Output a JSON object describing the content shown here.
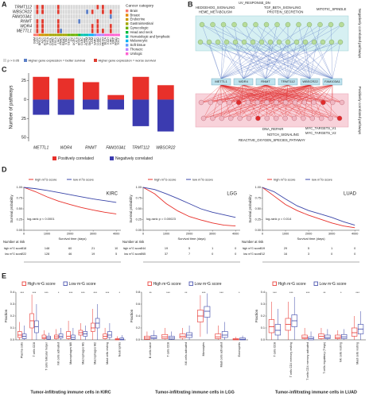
{
  "heatmap": {
    "panel_label": "A",
    "rows": [
      "TRMT112",
      "WBSCR22",
      "FAM103A1",
      "RNMT",
      "WDR4",
      "METTL1"
    ],
    "columns": [
      "GBM",
      "LGG",
      "BRCA",
      "ACC",
      "PCPG",
      "THCA",
      "CHOL",
      "COAD",
      "ESCA",
      "LIHC",
      "PAAD",
      "READ",
      "STAD",
      "CESC",
      "OV",
      "UCEC",
      "UCS",
      "HNSC",
      "DLBC",
      "LAML",
      "THYM",
      "SKCM",
      "UVM",
      "SARC",
      "LUAD",
      "LUSC",
      "MESO",
      "BLCA",
      "KICH",
      "KIRC",
      "KIRP",
      "PRAD",
      "TGCT"
    ],
    "column_category": [
      0,
      0,
      1,
      2,
      2,
      2,
      3,
      3,
      3,
      3,
      3,
      3,
      3,
      4,
      4,
      4,
      4,
      5,
      6,
      6,
      6,
      7,
      7,
      8,
      9,
      9,
      9,
      10,
      10,
      10,
      10,
      10,
      10
    ],
    "cells": [
      [
        0,
        2,
        0,
        2,
        0,
        0,
        0,
        0,
        0,
        2,
        0,
        0,
        0,
        0,
        0,
        0,
        0,
        0,
        0,
        0,
        0,
        0,
        0,
        0,
        2,
        0,
        2,
        0,
        0,
        0,
        0,
        0,
        0
      ],
      [
        0,
        2,
        0,
        2,
        0,
        0,
        0,
        0,
        0,
        2,
        0,
        0,
        0,
        0,
        0,
        0,
        0,
        0,
        0,
        0,
        1,
        0,
        2,
        0,
        0,
        0,
        2,
        0,
        0,
        2,
        0,
        0,
        0
      ],
      [
        0,
        0,
        0,
        0,
        0,
        0,
        0,
        0,
        0,
        0,
        0,
        0,
        0,
        0,
        0,
        0,
        0,
        0,
        0,
        0,
        0,
        0,
        0,
        0,
        0,
        0,
        0,
        0,
        0,
        1,
        0,
        0,
        0
      ],
      [
        0,
        2,
        0,
        2,
        0,
        0,
        0,
        0,
        0,
        2,
        0,
        0,
        0,
        0,
        0,
        0,
        0,
        1,
        0,
        0,
        0,
        0,
        0,
        0,
        2,
        0,
        0,
        0,
        0,
        0,
        0,
        0,
        0
      ],
      [
        0,
        2,
        0,
        2,
        0,
        0,
        0,
        0,
        0,
        2,
        0,
        0,
        0,
        0,
        0,
        0,
        0,
        0,
        0,
        0,
        0,
        0,
        2,
        0,
        2,
        0,
        0,
        0,
        0,
        2,
        0,
        0,
        0
      ],
      [
        0,
        2,
        0,
        2,
        0,
        0,
        0,
        0,
        0,
        2,
        1,
        0,
        0,
        0,
        0,
        0,
        0,
        0,
        0,
        0,
        0,
        0,
        2,
        0,
        2,
        0,
        2,
        0,
        0,
        2,
        0,
        0,
        0
      ]
    ],
    "category_title": "Cancer category",
    "categories": [
      {
        "name": "Brain",
        "color": "#f8766d"
      },
      {
        "name": "Breast",
        "color": "#e58700"
      },
      {
        "name": "Endocrine",
        "color": "#c99800"
      },
      {
        "name": "Gastrointestinal",
        "color": "#a3a500"
      },
      {
        "name": "Gynecologic",
        "color": "#6bb100"
      },
      {
        "name": "Head and neck",
        "color": "#00ba38"
      },
      {
        "name": "Hematologic and lymphatic",
        "color": "#00c0af"
      },
      {
        "name": "Melanocytic",
        "color": "#00b0f6"
      },
      {
        "name": "Soft tissue",
        "color": "#619cff"
      },
      {
        "name": "Thoracic",
        "color": "#b983ff"
      },
      {
        "name": "Urologic",
        "color": "#fd61d1"
      }
    ],
    "legend": [
      {
        "label": "p > 0.05",
        "color": "#d9d9d9"
      },
      {
        "label": "Higher gene expression = better survival",
        "color": "#5b7fc7"
      },
      {
        "label": "Higher gene expression = worse survival",
        "color": "#e03b2f"
      }
    ]
  },
  "network": {
    "panel_label": "B",
    "top_pathways": [
      "UV_RESPONSE_DN",
      "HEDGEHOG_SIGNALING",
      "TGF_BETA_SIGNALING",
      "HEME_METABOLISM",
      "PROTEIN_SECRETION",
      "MITOTIC_SPINDLE"
    ],
    "genes": [
      "METTL1",
      "WDR4",
      "RNMT",
      "TRMT112",
      "WBSCR22",
      "FAM103A1"
    ],
    "bottom_pathways": [
      "DNA_REPAIR",
      "MYC_TARGETS_V1",
      "MYC_TARGETS_V2",
      "NOTCH_SIGNALING",
      "REACTIVE_OXYGEN_SPECIES_PATHWAY"
    ],
    "top_group": "Negatively correlated pathways",
    "bottom_group": "Positively correlated pathways"
  },
  "chart_data": [
    {
      "type": "diverging-bar",
      "panel_label": "C",
      "y_label": "Number of pathways",
      "categories": [
        "METTL1",
        "WDR4",
        "RNMT",
        "FAM103A1",
        "TRMT112",
        "WBSCR22"
      ],
      "series": [
        {
          "name": "Positively correlated",
          "color": "#e8302a",
          "values": [
            30,
            28,
            23,
            6,
            30,
            19
          ]
        },
        {
          "name": "Negatively correlated",
          "color": "#3b3bb0",
          "values": [
            -20,
            -20,
            -13,
            -13,
            -35,
            -42
          ]
        }
      ],
      "ylim": [
        -55,
        35
      ],
      "yticks": [
        {
          "value": -50,
          "label": "50"
        },
        {
          "value": -25,
          "label": "25"
        },
        0,
        25
      ]
    },
    {
      "type": "survival",
      "panel_label": "D",
      "title": "KIRC",
      "annotation": "log-rank p < 0.0001",
      "x_label": "Survival time (days)",
      "y_label": "Survival probability",
      "series": [
        {
          "name": "high m⁷G score",
          "color": "#e8302a",
          "x": [
            0,
            500,
            1000,
            1500,
            2000,
            2500,
            3000,
            3500,
            4000
          ],
          "values": [
            1,
            0.9,
            0.78,
            0.68,
            0.6,
            0.53,
            0.47,
            0.42,
            0.38
          ]
        },
        {
          "name": "low m⁷G score",
          "color": "#3a45a8",
          "x": [
            0,
            500,
            1000,
            1500,
            2000,
            2500,
            3000,
            3500,
            4000
          ],
          "values": [
            1,
            0.97,
            0.93,
            0.88,
            0.83,
            0.78,
            0.73,
            0.69,
            0.65
          ]
        }
      ],
      "xlim": [
        0,
        4200
      ],
      "xticks": [
        0,
        1000,
        2000,
        3000,
        4000
      ],
      "ylim": [
        0,
        1
      ],
      "yticks": [
        {
          "value": 0,
          "label": "0.00"
        },
        0.25,
        {
          "value": 0.5,
          "label": "0.50"
        },
        0.75,
        {
          "value": 1,
          "label": "1.00"
        }
      ],
      "risk_title": "Number at risk",
      "risk": [
        [
          318,
          148,
          60,
          21,
          10
        ],
        [
          222,
          128,
          46,
          19,
          5
        ]
      ]
    },
    {
      "type": "survival",
      "title": "LGG",
      "annotation": "log-rank p = 0.00023",
      "x_label": "Survival time (days)",
      "y_label": "Survival probability",
      "series": [
        {
          "name": "high m⁷G score",
          "color": "#e8302a",
          "x": [
            0,
            500,
            1000,
            1500,
            2000,
            2500,
            3000,
            3500,
            4000
          ],
          "values": [
            1,
            0.85,
            0.62,
            0.45,
            0.32,
            0.24,
            0.17,
            0.12,
            0.1
          ]
        },
        {
          "name": "low m⁷G score",
          "color": "#3a45a8",
          "x": [
            0,
            500,
            1000,
            1500,
            2000,
            2500,
            3000,
            3500,
            4000
          ],
          "values": [
            1,
            0.95,
            0.85,
            0.74,
            0.62,
            0.5,
            0.42,
            0.36,
            0.3
          ]
        }
      ],
      "xlim": [
        0,
        4200
      ],
      "xticks": [
        0,
        1000,
        2000,
        3000,
        4000
      ],
      "ylim": [
        0,
        1
      ],
      "yticks": [
        {
          "value": 0,
          "label": "0.00"
        },
        0.25,
        {
          "value": 0.5,
          "label": "0.50"
        },
        0.75,
        {
          "value": 1,
          "label": "1.00"
        }
      ],
      "risk_title": "Number at risk",
      "risk": [
        [
          244,
          19,
          5,
          1,
          0
        ],
        [
          265,
          37,
          7,
          0,
          0
        ]
      ]
    },
    {
      "type": "survival",
      "title": "LUAD",
      "annotation": "log-rank p = 0.014",
      "x_label": "Survival time (days)",
      "y_label": "Survival probability",
      "series": [
        {
          "name": "high m⁷G score",
          "color": "#e8302a",
          "x": [
            0,
            500,
            1000,
            1500,
            2000,
            2500,
            3000,
            3500,
            4000
          ],
          "values": [
            1,
            0.8,
            0.6,
            0.46,
            0.35,
            0.26,
            0.17,
            0.1,
            0.06
          ]
        },
        {
          "name": "low m⁷G score",
          "color": "#3a45a8",
          "x": [
            0,
            500,
            1000,
            1500,
            2000,
            2500,
            3000,
            3500,
            4000
          ],
          "values": [
            1,
            0.9,
            0.73,
            0.57,
            0.46,
            0.38,
            0.3,
            0.2,
            0.12
          ]
        }
      ],
      "xlim": [
        0,
        4200
      ],
      "xticks": [
        0,
        1000,
        2000,
        3000,
        4000
      ],
      "ylim": [
        0,
        1
      ],
      "yticks": [
        {
          "value": 0,
          "label": "0.00"
        },
        0.25,
        {
          "value": 0.5,
          "label": "0.50"
        },
        0.75,
        {
          "value": 1,
          "label": "1.00"
        }
      ],
      "risk_title": "Number at risk",
      "risk": [
        [
          319,
          29,
          5,
          1,
          0
        ],
        [
          212,
          16,
          3,
          0,
          0
        ]
      ]
    },
    {
      "type": "box",
      "panel_label": "E",
      "title": "Tumor-infiltrating immune cells in KIRC",
      "y_label": "Fraction",
      "categories": [
        "Plasma cells",
        "T cells CD8",
        "T cells follicular helper",
        "NK cells activated",
        "Macrophages M0",
        "Macrophages M1",
        "Macrophages M2",
        "Mast cells resting",
        "Neutrophils"
      ],
      "series": [
        {
          "name": "High m⁷G score",
          "color": "#e8302a",
          "boxes": [
            [
              0,
              0.02,
              0.04,
              0.07,
              0.15
            ],
            [
              0,
              0.1,
              0.16,
              0.22,
              0.38
            ],
            [
              0,
              0.01,
              0.02,
              0.04,
              0.08
            ],
            [
              0,
              0.01,
              0.025,
              0.04,
              0.09
            ],
            [
              0,
              0.01,
              0.03,
              0.07,
              0.16
            ],
            [
              0,
              0.04,
              0.06,
              0.08,
              0.14
            ],
            [
              0,
              0.07,
              0.1,
              0.14,
              0.26
            ],
            [
              0,
              0.01,
              0.03,
              0.05,
              0.1
            ],
            [
              0,
              0,
              0.005,
              0.01,
              0.03
            ]
          ]
        },
        {
          "name": "Low m⁷G score",
          "color": "#3a45a8",
          "boxes": [
            [
              0,
              0.01,
              0.03,
              0.05,
              0.12
            ],
            [
              0,
              0.06,
              0.11,
              0.16,
              0.3
            ],
            [
              0,
              0.005,
              0.015,
              0.03,
              0.06
            ],
            [
              0,
              0.015,
              0.03,
              0.05,
              0.1
            ],
            [
              0,
              0.005,
              0.02,
              0.04,
              0.1
            ],
            [
              0,
              0.03,
              0.05,
              0.07,
              0.12
            ],
            [
              0,
              0.1,
              0.14,
              0.18,
              0.3
            ],
            [
              0,
              0.02,
              0.04,
              0.07,
              0.14
            ],
            [
              0,
              0,
              0.005,
              0.015,
              0.04
            ]
          ]
        }
      ],
      "ylim": [
        0,
        0.4
      ],
      "yticks": [
        {
          "value": 0,
          "label": "0.0"
        },
        0.1,
        0.2,
        0.3,
        0.4
      ],
      "annotations": [
        "***",
        "***",
        "***",
        "*",
        "***",
        "***",
        "***",
        "***",
        "*"
      ]
    },
    {
      "type": "box",
      "title": "Tumor-infiltrating immune cells in LGG",
      "y_label": "Fraction",
      "categories": [
        "B cells naive",
        "T cells CD8",
        "NK cells activated",
        "Monocytes",
        "Mast cells activated",
        "Eosinophils"
      ],
      "series": [
        {
          "name": "High m⁷G score",
          "color": "#e8302a",
          "boxes": [
            [
              0,
              0.01,
              0.03,
              0.06,
              0.14
            ],
            [
              0,
              0.02,
              0.05,
              0.09,
              0.2
            ],
            [
              0,
              0.03,
              0.06,
              0.1,
              0.2
            ],
            [
              0.05,
              0.3,
              0.4,
              0.5,
              0.75
            ],
            [
              0,
              0.02,
              0.05,
              0.1,
              0.24
            ],
            [
              0,
              0,
              0.01,
              0.02,
              0.05
            ]
          ]
        },
        {
          "name": "Low m⁷G score",
          "color": "#3a45a8",
          "boxes": [
            [
              0,
              0.02,
              0.04,
              0.07,
              0.16
            ],
            [
              0,
              0.01,
              0.03,
              0.06,
              0.14
            ],
            [
              0,
              0.04,
              0.08,
              0.12,
              0.24
            ],
            [
              0.1,
              0.38,
              0.48,
              0.56,
              0.78
            ],
            [
              0,
              0.04,
              0.08,
              0.14,
              0.3
            ],
            [
              0,
              0,
              0.01,
              0.03,
              0.07
            ]
          ]
        }
      ],
      "ylim": [
        0,
        0.8
      ],
      "yticks": [
        {
          "value": 0,
          "label": "0.0"
        },
        0.2,
        0.4,
        0.6,
        0.8
      ],
      "annotations": [
        "**",
        "***",
        "**",
        "***",
        "***",
        "*"
      ]
    },
    {
      "type": "box",
      "title": "Tumor-infiltrating immune cells in LUAD",
      "y_label": "Fraction",
      "categories": [
        "T cells CD8",
        "T cells CD4 memory resting",
        "T cells CD4 memory activated",
        "T cells regulatory (Tregs)",
        "NK cells resting",
        "Mast cells resting"
      ],
      "series": [
        {
          "name": "High m⁷G score",
          "color": "#e8302a",
          "boxes": [
            [
              0,
              0.06,
              0.11,
              0.17,
              0.32
            ],
            [
              0,
              0.08,
              0.13,
              0.18,
              0.32
            ],
            [
              0,
              0.01,
              0.02,
              0.04,
              0.1
            ],
            [
              0,
              0.01,
              0.03,
              0.05,
              0.1
            ],
            [
              0,
              0.01,
              0.02,
              0.04,
              0.08
            ],
            [
              0,
              0.03,
              0.06,
              0.1,
              0.2
            ]
          ]
        },
        {
          "name": "Low m⁷G score",
          "color": "#3a45a8",
          "boxes": [
            [
              0,
              0.04,
              0.08,
              0.13,
              0.26
            ],
            [
              0,
              0.11,
              0.16,
              0.21,
              0.36
            ],
            [
              0,
              0,
              0.01,
              0.025,
              0.07
            ],
            [
              0,
              0.01,
              0.02,
              0.04,
              0.09
            ],
            [
              0,
              0.01,
              0.025,
              0.045,
              0.09
            ],
            [
              0,
              0.05,
              0.09,
              0.13,
              0.24
            ]
          ]
        }
      ],
      "ylim": [
        0,
        0.4
      ],
      "yticks": [
        {
          "value": 0,
          "label": "0.0"
        },
        0.1,
        0.2,
        0.3,
        0.4
      ],
      "annotations": [
        "***",
        "***",
        "***",
        "**",
        "*",
        "***"
      ]
    }
  ]
}
